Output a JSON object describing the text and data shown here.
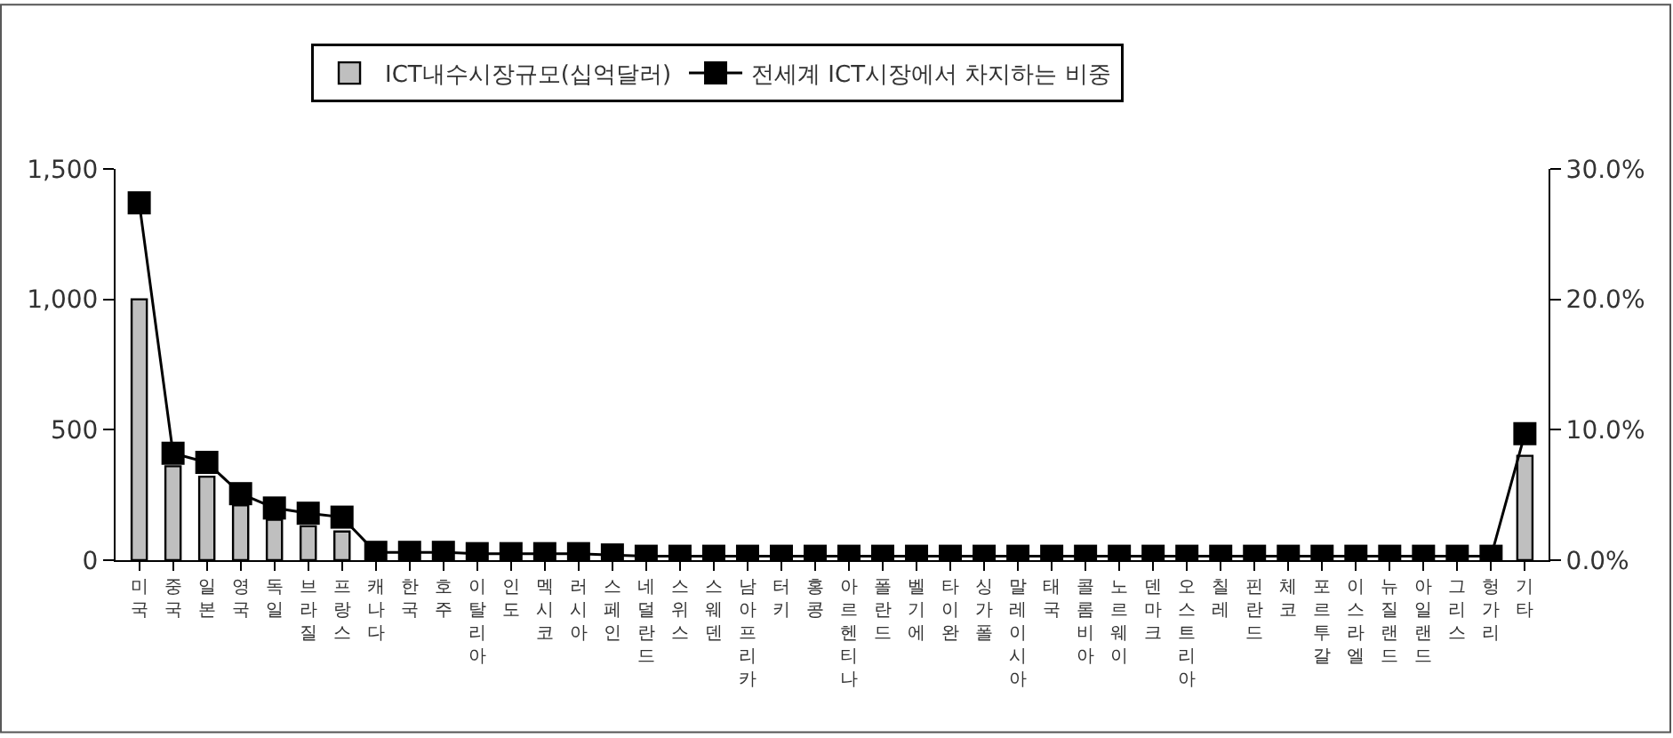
{
  "chart_data": {
    "type": "bar",
    "categories": [
      "미국",
      "중국",
      "일본",
      "영국",
      "독일",
      "브라질",
      "프랑스",
      "캐나다",
      "한국",
      "호주",
      "이탈리아",
      "인도",
      "멕시코",
      "러시아",
      "스페인",
      "네덜란드",
      "스위스",
      "스웨덴",
      "남아프리카",
      "터키",
      "홍콩",
      "아르헨티나",
      "폴란드",
      "벨기에",
      "타이완",
      "싱가폴",
      "말레이시아",
      "태국",
      "콜롬비아",
      "노르웨이",
      "덴마크",
      "오스트리아",
      "칠레",
      "핀란드",
      "체코",
      "포르투갈",
      "이스라엘",
      "뉴질랜드",
      "아일랜드",
      "그리스",
      "헝가리",
      "기타"
    ],
    "series": [
      {
        "name": "ICT내수시장규모(십억달러)",
        "color": "#bfbfbf",
        "values": [
          1000,
          360,
          320,
          210,
          155,
          130,
          110,
          5,
          5,
          5,
          5,
          5,
          5,
          5,
          5,
          5,
          5,
          5,
          5,
          5,
          5,
          5,
          5,
          5,
          5,
          5,
          5,
          5,
          5,
          5,
          5,
          5,
          5,
          5,
          5,
          5,
          5,
          5,
          5,
          5,
          5,
          400
        ]
      },
      {
        "name": "전세계 ICT시장에서 차지하는 비중",
        "type": "line",
        "axis": "y2",
        "color": "#000000",
        "marker": "square",
        "values": [
          27.4,
          8.2,
          7.5,
          5.1,
          4.0,
          3.6,
          3.3,
          0.6,
          0.6,
          0.6,
          0.5,
          0.5,
          0.5,
          0.5,
          0.4,
          0.3,
          0.3,
          0.3,
          0.3,
          0.3,
          0.3,
          0.3,
          0.3,
          0.3,
          0.3,
          0.3,
          0.3,
          0.3,
          0.3,
          0.3,
          0.3,
          0.3,
          0.3,
          0.3,
          0.3,
          0.3,
          0.3,
          0.3,
          0.3,
          0.3,
          0.3,
          9.7
        ]
      }
    ],
    "ylim": [
      0,
      1500
    ],
    "yticks": [
      0,
      {
        "value": 500,
        "label": "500"
      },
      {
        "value": 1000,
        "label": "1,000"
      },
      {
        "value": 1500,
        "label": "1,500"
      }
    ],
    "y2lim": [
      0,
      30
    ],
    "y2ticks": [
      {
        "value": 0,
        "label": "0.0%"
      },
      {
        "value": 10,
        "label": "10.0%"
      },
      {
        "value": 20,
        "label": "20.0%"
      },
      {
        "value": 30,
        "label": "30.0%"
      }
    ],
    "legend": "top"
  }
}
